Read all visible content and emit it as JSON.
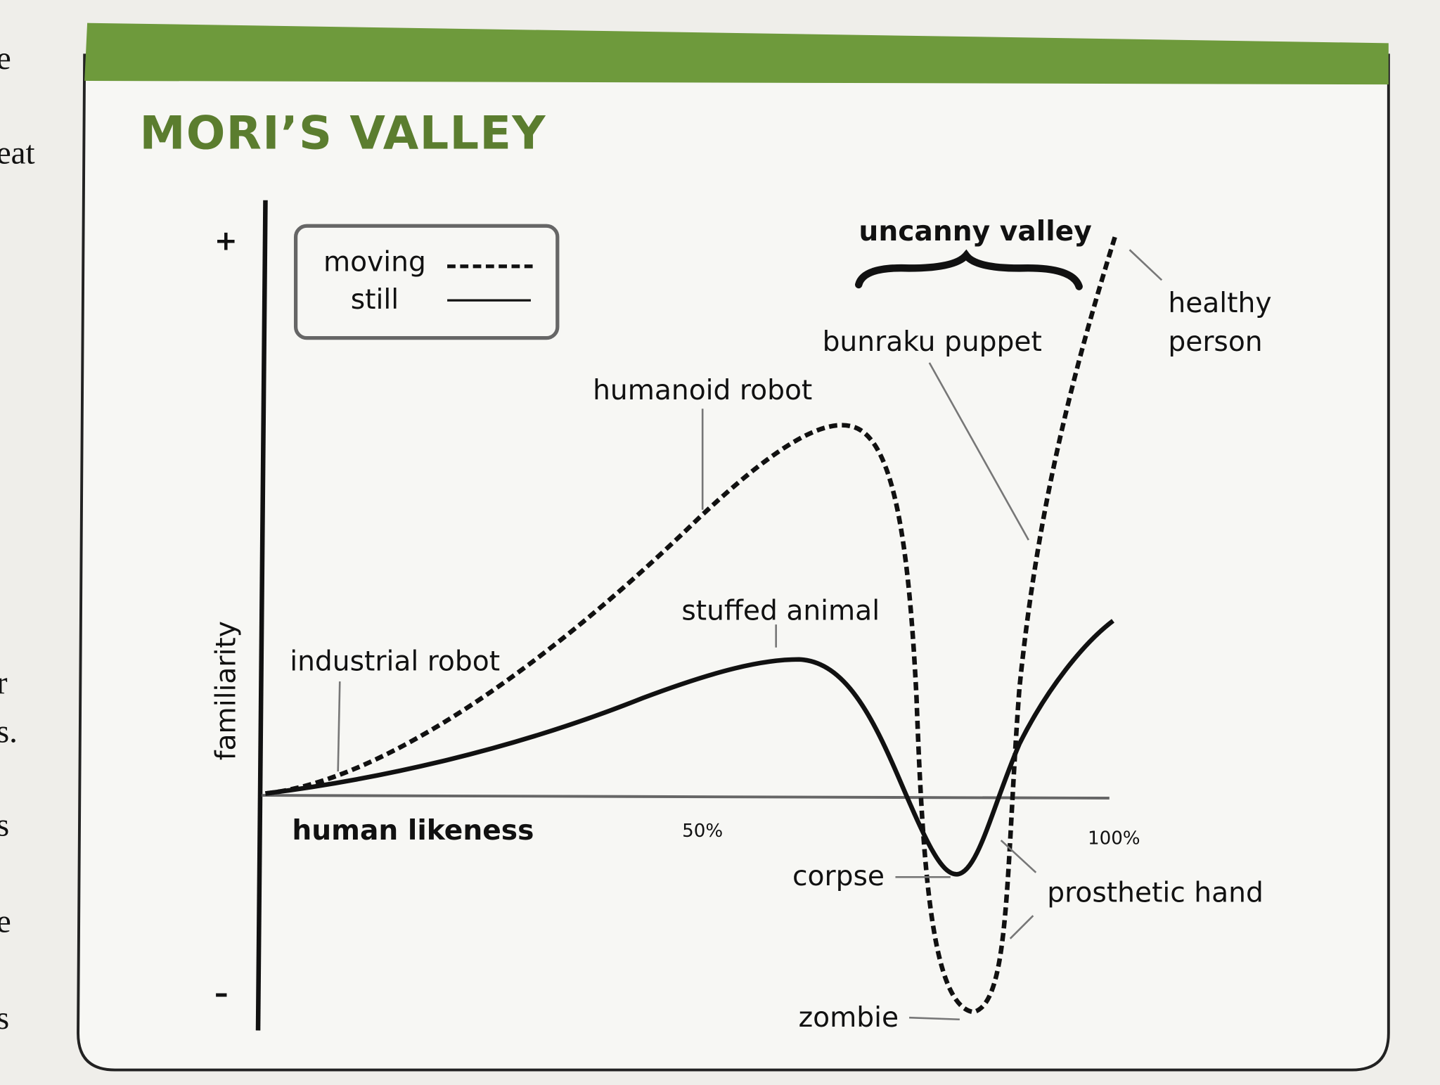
{
  "margin_text": [
    "e",
    "eat",
    "r",
    "s.",
    "s",
    "e",
    "s"
  ],
  "title": "MORI’S VALLEY",
  "legend": {
    "moving": "moving",
    "still": "still"
  },
  "axes": {
    "y_plus": "+",
    "y_minus": "–",
    "y_label": "familiarity",
    "x_label": "human likeness",
    "x_mid": "50%",
    "x_end": "100%"
  },
  "bracket_label": "uncanny valley",
  "annotations": {
    "industrial_robot": "industrial robot",
    "humanoid_robot": "humanoid robot",
    "stuffed_animal": "stuffed animal",
    "bunraku_puppet": "bunraku puppet",
    "healthy_person": [
      "healthy",
      "person"
    ],
    "corpse": "corpse",
    "prosthetic_hand": "prosthetic hand",
    "zombie": "zombie"
  }
}
